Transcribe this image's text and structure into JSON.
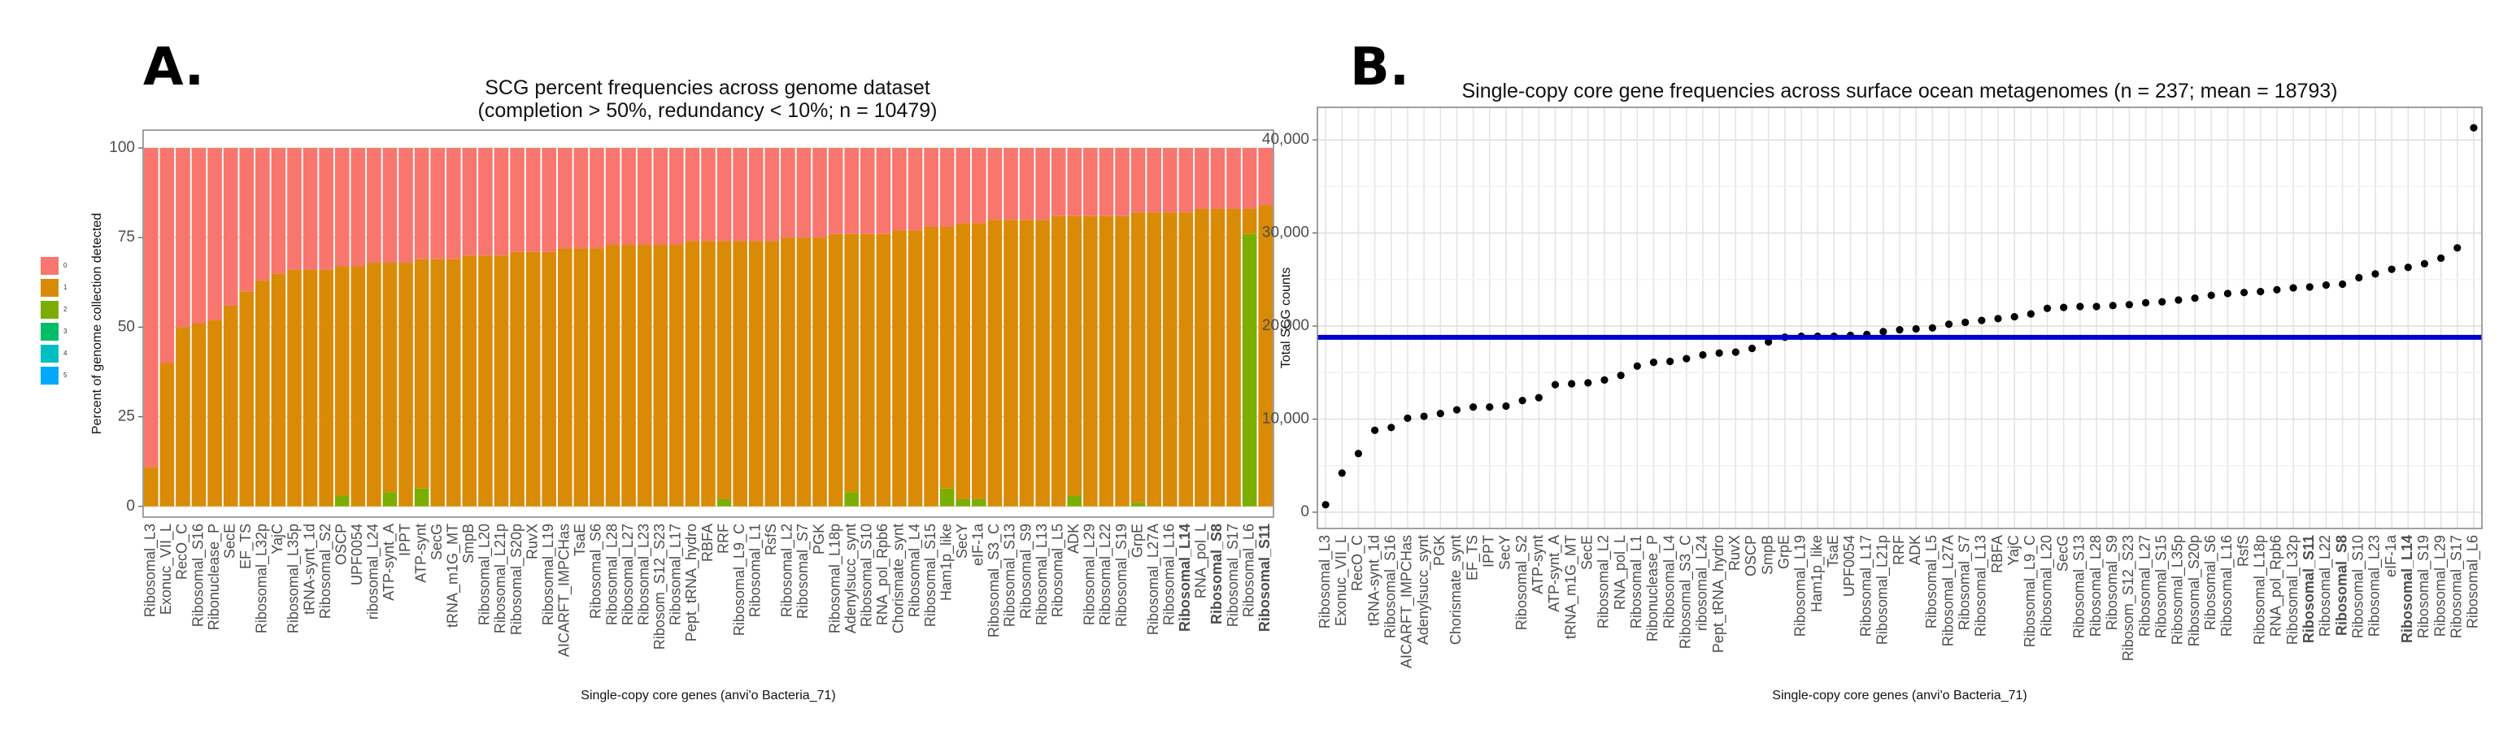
{
  "chart_data": [
    {
      "type": "bar",
      "stacked": true,
      "panel_label": "A.",
      "title": "SCG percent frequencies across genome dataset",
      "subtitle": "(completion > 50%, redundancy < 10%; n = 10479)",
      "ylabel": "Percent of genome collection detected",
      "xlabel": "Single-copy core genes (anvi'o Bacteria_71)",
      "categories": [
        "Ribosomal_L3",
        "Exonuc_VII_L",
        "RecO_C",
        "Ribosomal_S16",
        "Ribonuclease_P",
        "SecE",
        "EF_TS",
        "Ribosomal_L32p",
        "YajC",
        "Ribosomal_L35p",
        "tRNA-synt_1d",
        "Ribosomal_S2",
        "OSCP",
        "UPF0054",
        "ribosomal_L24",
        "ATP-synt_A",
        "IPPT",
        "ATP-synt",
        "SecG",
        "tRNA_m1G_MT",
        "SmpB",
        "Ribosomal_L20",
        "Ribosomal_L21p",
        "Ribosomal_S20p",
        "RuvX",
        "Ribosomal_L19",
        "AICARFT_IMPCHas",
        "TsaE",
        "Ribosomal_S6",
        "Ribosomal_L28",
        "Ribosomal_L27",
        "Ribosomal_L23",
        "Ribosom_S12_S23",
        "Ribosomal_L17",
        "Pept_tRNA_hydro",
        "RBFA",
        "RRF",
        "Ribosomal_L9_C",
        "Ribosomal_L1",
        "RsfS",
        "Ribosomal_L2",
        "Ribosomal_S7",
        "PGK",
        "Ribosomal_L18p",
        "Adenylsucc_synt",
        "Ribosomal_S10",
        "RNA_pol_Rpb6",
        "Chorismate_synt",
        "Ribosomal_L4",
        "Ribosomal_S15",
        "Ham1p_like",
        "SecY",
        "eIF-1a",
        "Ribosomal_S3_C",
        "Ribosomal_S13",
        "Ribosomal_S9",
        "Ribosomal_L13",
        "Ribosomal_L5",
        "ADK",
        "Ribosomal_L29",
        "Ribosomal_L22",
        "Ribosomal_S19",
        "GrpE",
        "Ribosomal_L27A",
        "Ribosomal_L16",
        "Ribosomal_L14",
        "RNA_pol_L",
        "Ribosomal_S8",
        "Ribosomal_S17",
        "Ribosomal_L6",
        "Ribosomal_S11"
      ],
      "bold_categories": [
        65,
        67,
        70
      ],
      "series": [
        {
          "name": "0",
          "color": "#F8766D",
          "values": [
            89,
            60,
            50,
            49,
            48,
            44,
            40,
            37,
            35,
            34,
            34,
            34,
            33,
            33,
            32,
            32,
            32,
            31,
            31,
            31,
            30,
            30,
            30,
            29,
            29,
            29,
            28,
            28,
            28,
            27,
            27,
            27,
            27,
            27,
            26,
            26,
            26,
            26,
            26,
            26,
            25,
            25,
            25,
            24,
            24,
            24,
            24,
            23,
            23,
            22,
            22,
            21,
            21,
            20,
            20,
            20,
            20,
            19,
            19,
            19,
            19,
            19,
            18,
            18,
            18,
            18,
            17,
            17,
            17,
            17,
            16
          ]
        },
        {
          "name": "1",
          "color": "#D98B06",
          "values": [
            11,
            40,
            50,
            51,
            52,
            56,
            60,
            63,
            65,
            66,
            66,
            66,
            64,
            67,
            68,
            64,
            68,
            64,
            69,
            69,
            70,
            70,
            70,
            71,
            71,
            71,
            72,
            72,
            72,
            73,
            73,
            73,
            73,
            73,
            74,
            74,
            72,
            74,
            74,
            74,
            75,
            75,
            75,
            76,
            72,
            76,
            76,
            77,
            77,
            78,
            73,
            77,
            77,
            80,
            80,
            80,
            80,
            81,
            78,
            81,
            81,
            81,
            81,
            82,
            82,
            82,
            83,
            83,
            83,
            7,
            84
          ]
        },
        {
          "name": "2",
          "color": "#7CAE00",
          "values": [
            0,
            0,
            0,
            0,
            0,
            0,
            0,
            0,
            0,
            0,
            0,
            0,
            3,
            0,
            0,
            4,
            0,
            5,
            0,
            0,
            0,
            0,
            0,
            0,
            0,
            0,
            0,
            0,
            0,
            0,
            0,
            0,
            0,
            0,
            0,
            0,
            2,
            0,
            0,
            0,
            0,
            0,
            0,
            0,
            4,
            0,
            0,
            0,
            0,
            0,
            5,
            2,
            2,
            0,
            0,
            0,
            0,
            0,
            3,
            0,
            0,
            0,
            1,
            0,
            0,
            0,
            0,
            0,
            0,
            76,
            0
          ]
        },
        {
          "name": "3",
          "color": "#00BE67",
          "values": [
            0,
            0,
            0,
            0,
            0,
            0,
            0,
            0,
            0,
            0,
            0,
            0,
            0,
            0,
            0,
            0,
            0,
            0,
            0,
            0,
            0,
            0,
            0,
            0,
            0,
            0,
            0,
            0,
            0,
            0,
            0,
            0,
            0,
            0,
            0,
            0,
            0,
            0,
            0,
            0,
            0,
            0,
            0,
            0,
            0,
            0,
            0,
            0,
            0,
            0,
            0,
            0,
            0,
            0,
            0,
            0,
            0,
            0,
            0,
            0,
            0,
            0,
            0,
            0,
            0,
            0,
            0,
            0,
            0,
            0,
            0
          ]
        },
        {
          "name": "4",
          "color": "#00BFC4",
          "values": [
            0,
            0,
            0,
            0,
            0,
            0,
            0,
            0,
            0,
            0,
            0,
            0,
            0,
            0,
            0,
            0,
            0,
            0,
            0,
            0,
            0,
            0,
            0,
            0,
            0,
            0,
            0,
            0,
            0,
            0,
            0,
            0,
            0,
            0,
            0,
            0,
            0,
            0,
            0,
            0,
            0,
            0,
            0,
            0,
            0,
            0,
            0,
            0,
            0,
            0,
            0,
            0,
            0,
            0,
            0,
            0,
            0,
            0,
            0,
            0,
            0,
            0,
            0,
            0,
            0,
            0,
            0,
            0,
            0,
            0,
            0
          ]
        },
        {
          "name": "5",
          "color": "#00A9FF",
          "values": [
            0,
            0,
            0,
            0,
            0,
            0,
            0,
            0,
            0,
            0,
            0,
            0,
            0,
            0,
            0,
            0,
            0,
            0,
            0,
            0,
            0,
            0,
            0,
            0,
            0,
            0,
            0,
            0,
            0,
            0,
            0,
            0,
            0,
            0,
            0,
            0,
            0,
            0,
            0,
            0,
            0,
            0,
            0,
            0,
            0,
            0,
            0,
            0,
            0,
            0,
            0,
            0,
            0,
            0,
            0,
            0,
            0,
            0,
            0,
            0,
            0,
            0,
            0,
            0,
            0,
            0,
            0,
            0,
            0,
            0,
            0
          ]
        }
      ],
      "ylim": [
        -3,
        105
      ],
      "yticks": [
        0,
        25,
        50,
        75,
        100
      ],
      "grid": true,
      "legend": "left"
    },
    {
      "type": "scatter",
      "panel_label": "B.",
      "title": "Single-copy core gene frequencies across surface ocean metagenomes (n = 237; mean = 18793)",
      "ylabel": "Total SCG counts",
      "xlabel": "Single-copy core genes (anvi'o Bacteria_71)",
      "categories": [
        "Ribosomal_L3",
        "Exonuc_VII_L",
        "RecO_C",
        "tRNA-synt_1d",
        "Ribosomal_S16",
        "AICARFT_IMPCHas",
        "Adenylsucc_synt",
        "PGK",
        "Chorismate_synt",
        "EF_TS",
        "IPPT",
        "SecY",
        "Ribosomal_S2",
        "ATP-synt",
        "ATP-synt_A",
        "tRNA_m1G_MT",
        "SecE",
        "Ribosomal_L2",
        "RNA_pol_L",
        "Ribosomal_L1",
        "Ribonuclease_P",
        "Ribosomal_L4",
        "Ribosomal_S3_C",
        "ribosomal_L24",
        "Pept_tRNA_hydro",
        "RuvX",
        "OSCP",
        "SmpB",
        "GrpE",
        "Ribosomal_L19",
        "Ham1p_like",
        "TsaE",
        "UPF0054",
        "Ribosomal_L17",
        "Ribosomal_L21p",
        "RRF",
        "ADK",
        "Ribosomal_L5",
        "Ribosomal_L27A",
        "Ribosomal_S7",
        "Ribosomal_L13",
        "RBFA",
        "YajC",
        "Ribosomal_L9_C",
        "Ribosomal_L20",
        "SecG",
        "Ribosomal_S13",
        "Ribosomal_L28",
        "Ribosomal_S9",
        "Ribosom_S12_S23",
        "Ribosomal_L27",
        "Ribosomal_S15",
        "Ribosomal_L35p",
        "Ribosomal_S20p",
        "Ribosomal_S6",
        "Ribosomal_L16",
        "RsfS",
        "Ribosomal_L18p",
        "RNA_pol_Rpb6",
        "Ribosomal_L32p",
        "Ribosomal_S11",
        "Ribosomal_L22",
        "Ribosomal_S8",
        "Ribosomal_S10",
        "Ribosomal_L23",
        "eIF-1a",
        "Ribosomal_L14",
        "Ribosomal_S19",
        "Ribosomal_L29",
        "Ribosomal_S17",
        "Ribosomal_L6"
      ],
      "bold_categories": [
        60,
        62,
        66
      ],
      "values": [
        800,
        4200,
        6300,
        8800,
        9100,
        10100,
        10300,
        10600,
        11000,
        11300,
        11300,
        11400,
        12000,
        12300,
        13700,
        13800,
        13900,
        14200,
        14700,
        15700,
        16100,
        16200,
        16500,
        16900,
        17100,
        17200,
        17600,
        18300,
        18800,
        18900,
        18900,
        18900,
        19000,
        19100,
        19400,
        19600,
        19700,
        19800,
        20200,
        20400,
        20600,
        20800,
        21000,
        21300,
        21900,
        22000,
        22100,
        22100,
        22200,
        22300,
        22500,
        22600,
        22800,
        23000,
        23300,
        23500,
        23600,
        23700,
        23900,
        24100,
        24200,
        24400,
        24500,
        25200,
        25600,
        26100,
        26300,
        26700,
        27300,
        28400,
        41300
      ],
      "color": "#000000",
      "hline": {
        "value": 18793,
        "color": "#0000CC"
      },
      "ylim": [
        -1750,
        43500
      ],
      "yticks": [
        0,
        {
          "value": 10000,
          "label": "10,000"
        },
        {
          "value": 20000,
          "label": "20,000"
        },
        {
          "value": 30000,
          "label": "30,000"
        },
        {
          "value": 40000,
          "label": "40,000"
        }
      ],
      "grid": true
    }
  ]
}
